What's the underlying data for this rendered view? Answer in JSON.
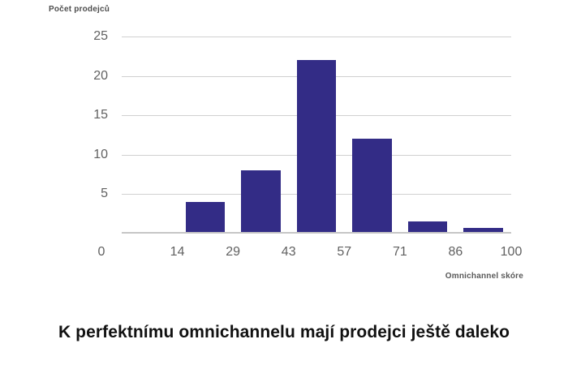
{
  "chart": {
    "bar_color": "#332c86",
    "grid_color": "#d0d0d0",
    "baseline_color": "#c6c6c6",
    "tick_color": "#616161",
    "axis_label_color": "#4d4d4d"
  },
  "chart_data": {
    "type": "bar",
    "subtype": "histogram",
    "title": "K perfektnímu omnichannelu mají prodejci ještě daleko",
    "ylabel": "Počet prodejců",
    "xlabel": "Omnichannel skóre",
    "bin_edges": [
      0,
      14,
      29,
      43,
      57,
      71,
      86,
      100
    ],
    "xticklabels": [
      "0",
      "14",
      "29",
      "43",
      "57",
      "71",
      "86",
      "100"
    ],
    "values": [
      0,
      4,
      8,
      22,
      12,
      1.5,
      0.7
    ],
    "yticks": [
      5,
      10,
      15,
      20,
      25
    ],
    "ylim": [
      0,
      25
    ],
    "grid": true,
    "legend": false
  }
}
